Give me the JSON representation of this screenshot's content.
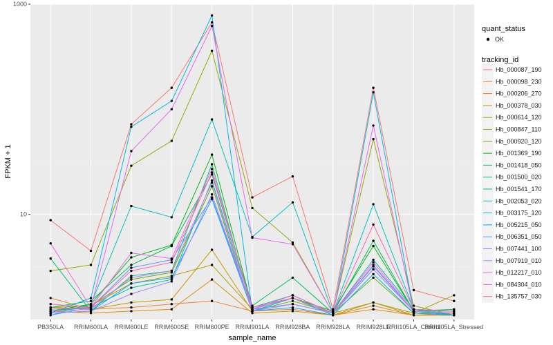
{
  "chart_data": {
    "type": "line",
    "title": "",
    "xlabel": "sample_name",
    "ylabel": "FPKM + 1",
    "y_scale": "log10",
    "ylim": [
      1.0,
      1000
    ],
    "y_ticks": [
      10,
      1000
    ],
    "y_tick_labels": [
      "10",
      "1000"
    ],
    "grid": true,
    "legend_position": "right",
    "categories": [
      "PB350LA",
      "RRIM600LA",
      "RRIM600LE",
      "RRIM600SE",
      "RRIM600PE",
      "RRIM901LA",
      "RRIM928BA",
      "RRIM928LA",
      "RRIM928LE",
      "RRII105LA_Control",
      "RRII105LA_Stressed"
    ],
    "shape_legend": {
      "title": "quant_status",
      "entries": [
        "OK"
      ]
    },
    "color_legend_title": "tracking_id",
    "series": [
      {
        "name": "Hb_000087_190",
        "color": "#F8766D",
        "values": [
          8.8,
          4.5,
          72,
          160,
          670,
          14.5,
          23,
          1.25,
          160,
          1.9,
          1.5
        ]
      },
      {
        "name": "Hb_000098_230",
        "color": "#EC8239",
        "values": [
          1.6,
          1.25,
          1.3,
          1.4,
          1.5,
          1.2,
          1.25,
          1.1,
          1.35,
          1.1,
          1.1
        ]
      },
      {
        "name": "Hb_000206_270",
        "color": "#DB8E00",
        "values": [
          1.2,
          1.15,
          1.2,
          1.25,
          2.4,
          1.15,
          1.2,
          1.1,
          1.25,
          1.1,
          1.1
        ]
      },
      {
        "name": "Hb_000378_030",
        "color": "#C79800",
        "values": [
          1.3,
          1.25,
          1.45,
          1.55,
          4.6,
          1.2,
          1.6,
          1.1,
          1.45,
          1.1,
          1.15
        ]
      },
      {
        "name": "Hb_000614_120",
        "color": "#AEA200",
        "values": [
          1.3,
          1.35,
          2.2,
          2.6,
          3.3,
          1.25,
          1.7,
          1.15,
          1.45,
          1.15,
          1.7
        ]
      },
      {
        "name": "Hb_000847_110",
        "color": "#8FAA00",
        "values": [
          2.9,
          3.3,
          29,
          50,
          360,
          11.5,
          5.4,
          1.15,
          52,
          1.35,
          1.1
        ]
      },
      {
        "name": "Hb_000920_120",
        "color": "#64B200",
        "values": [
          1.2,
          1.35,
          2.4,
          2.8,
          18.5,
          1.2,
          1.5,
          1.15,
          2.5,
          1.15,
          1.15
        ]
      },
      {
        "name": "Hb_001369_190",
        "color": "#00B712",
        "values": [
          1.2,
          1.4,
          3.9,
          5.1,
          37,
          1.3,
          1.6,
          1.2,
          5.0,
          1.2,
          1.15
        ]
      },
      {
        "name": "Hb_001418_050",
        "color": "#00BC56",
        "values": [
          1.3,
          1.5,
          3.3,
          5.0,
          24,
          1.35,
          2.5,
          1.15,
          5.6,
          1.2,
          1.25
        ]
      },
      {
        "name": "Hb_001500_020",
        "color": "#00BF7D",
        "values": [
          3.8,
          1.2,
          2.6,
          2.9,
          30,
          1.2,
          1.4,
          1.15,
          3.0,
          1.2,
          1.2
        ]
      },
      {
        "name": "Hb_001541_170",
        "color": "#00C19F",
        "values": [
          1.2,
          1.3,
          2.0,
          2.4,
          21,
          1.3,
          1.7,
          1.15,
          3.7,
          1.25,
          1.2
        ]
      },
      {
        "name": "Hb_002053_020",
        "color": "#00BFC4",
        "values": [
          1.1,
          1.4,
          12,
          9.4,
          80,
          6.1,
          13,
          1.15,
          12.5,
          1.25,
          1.1
        ]
      },
      {
        "name": "Hb_003175_120",
        "color": "#00B8E7",
        "values": [
          1.15,
          1.6,
          68,
          120,
          780,
          1.2,
          1.6,
          1.1,
          145,
          1.2,
          1.1
        ]
      },
      {
        "name": "Hb_005215_050",
        "color": "#00A9FF",
        "values": [
          1.15,
          1.2,
          2.2,
          2.5,
          14,
          1.2,
          1.3,
          1.1,
          2.7,
          1.15,
          1.1
        ]
      },
      {
        "name": "Hb_006351_050",
        "color": "#5C95FF",
        "values": [
          1.1,
          1.3,
          3.1,
          3.7,
          14.5,
          1.25,
          1.4,
          1.15,
          3.2,
          1.2,
          1.15
        ]
      },
      {
        "name": "Hb_007441_100",
        "color": "#9F84FF",
        "values": [
          1.15,
          1.2,
          1.75,
          2.3,
          15.5,
          1.25,
          1.6,
          1.15,
          3.0,
          1.2,
          1.15
        ]
      },
      {
        "name": "Hb_007919_010",
        "color": "#C77CFF",
        "values": [
          1.2,
          1.25,
          2.5,
          2.9,
          20,
          1.2,
          1.4,
          1.15,
          3.3,
          1.2,
          1.15
        ]
      },
      {
        "name": "Hb_012217_010",
        "color": "#E268EF",
        "values": [
          1.25,
          1.3,
          40,
          100,
          620,
          6.0,
          5.2,
          1.15,
          70,
          1.2,
          1.15
        ]
      },
      {
        "name": "Hb_084304_010",
        "color": "#F564E3",
        "values": [
          5.3,
          1.3,
          4.3,
          3.8,
          27,
          1.25,
          1.7,
          1.15,
          3.5,
          1.2,
          1.15
        ]
      },
      {
        "name": "Hb_135757_030",
        "color": "#FF64B0",
        "values": [
          1.4,
          1.3,
          2.9,
          3.5,
          25,
          1.3,
          1.6,
          1.15,
          8.0,
          1.25,
          1.2
        ]
      }
    ]
  }
}
